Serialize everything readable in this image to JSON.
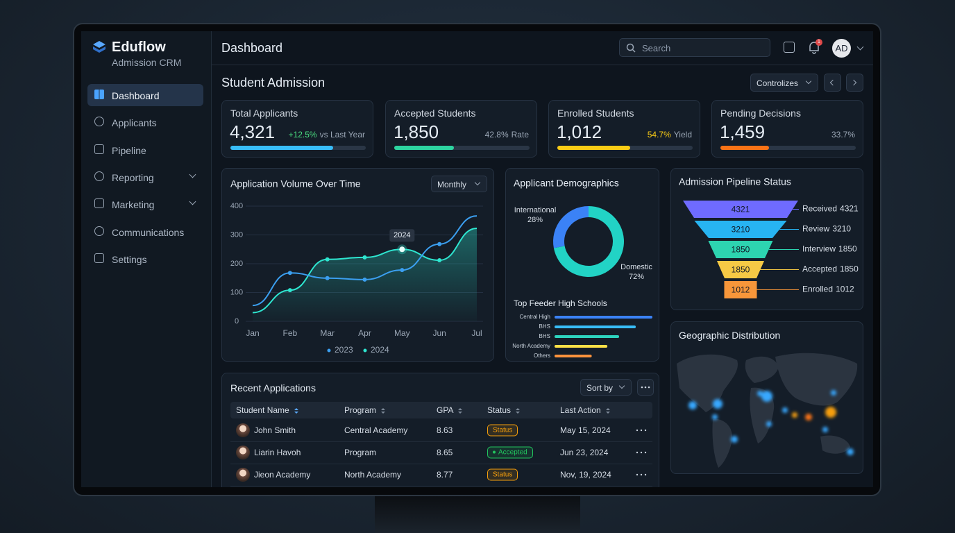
{
  "sidebar": {
    "brand": "Eduflow",
    "subtitle": "Admission CRM",
    "nav": [
      "Dashboard",
      "Applicants",
      "Pipeline",
      "Reporting",
      "Marketing",
      "Communications",
      "Settings"
    ]
  },
  "header": {
    "title": "Dashboard",
    "search_placeholder": "Search",
    "notification_count": 1,
    "avatar": "AD"
  },
  "section": {
    "title": "Student Admission",
    "filter": "Controlizes"
  },
  "kpis": [
    {
      "label": "Total Applicants",
      "value": "4,321",
      "change": "+12.5%",
      "change_label": "vs Last Year",
      "progress": 76,
      "color": "#38bdf8"
    },
    {
      "label": "Accepted Students",
      "value": "1,850",
      "change": "42.8%",
      "change_label": "Rate",
      "progress": 44,
      "color": "#2dd4a0"
    },
    {
      "label": "Enrolled Students",
      "value": "1,012",
      "change": "54.7%",
      "change_label": "Yield",
      "progress": 54,
      "color": "#facc15"
    },
    {
      "label": "Pending Decisions",
      "value": "1,459",
      "change": "33.7%",
      "progress": 36,
      "color": "#f97316"
    }
  ],
  "chart_data": [
    {
      "type": "line",
      "title": "Application Volume Over Time",
      "control": "Monthly",
      "categories": [
        "Jan",
        "Feb",
        "Mar",
        "Apr",
        "May",
        "Jun",
        "Jul"
      ],
      "ylim": [
        0,
        400
      ],
      "yticks": [
        0,
        100,
        200,
        300,
        400
      ],
      "grid": true,
      "annotation": "2024",
      "series": [
        {
          "name": "2023",
          "color": "#3b9ff0",
          "values": [
            55,
            168,
            150,
            145,
            178,
            268,
            366
          ]
        },
        {
          "name": "2024",
          "color": "#2ee6d0",
          "values": [
            30,
            108,
            215,
            222,
            250,
            212,
            323
          ]
        }
      ]
    },
    {
      "type": "donut",
      "title": "Applicant Demographics",
      "categories": [
        "International",
        "Domestic"
      ],
      "values": [
        28,
        72
      ],
      "value_labels": [
        "28%",
        "72%"
      ],
      "colors": [
        "#3b82f6",
        "#22d3c5"
      ]
    },
    {
      "type": "hbar",
      "title": "Top Feeder High Schools",
      "categories": [
        "Central High",
        "BHS",
        "BHS",
        "North Academy",
        "Others"
      ],
      "values": [
        100,
        83,
        66,
        54,
        38
      ],
      "xlim": [
        0,
        100
      ],
      "colors": [
        "#3b82f6",
        "#38bdf8",
        "#2dd4bf",
        "#fde047",
        "#fb923c"
      ]
    },
    {
      "type": "funnel",
      "title": "Admission Pipeline Status",
      "categories": [
        "Received",
        "Review",
        "Interview",
        "Accepted",
        "Enrolled"
      ],
      "values": [
        4321,
        3210,
        1850,
        1850,
        1012
      ],
      "colors": [
        "#6f6bff",
        "#27b4f2",
        "#2dd4b0",
        "#f6c945",
        "#f7963a"
      ]
    }
  ],
  "geo": {
    "title": "Geographic Distribution"
  },
  "table": {
    "title": "Recent Applications",
    "sort": "Sort by",
    "columns": [
      "Student Name",
      "Program",
      "GPA",
      "Status",
      "Last Action"
    ],
    "rows": [
      [
        "John Smith",
        "Central Academy",
        8.63,
        "Status",
        "May 15, 2024"
      ],
      [
        "Liarin Havoh",
        "Program",
        8.65,
        "Accepted",
        "Jun 23, 2024"
      ],
      [
        "Jieon Academy",
        "North Academy",
        8.77,
        "Status",
        "Nov, 19, 2024"
      ]
    ],
    "status_colors": [
      "#f59e0b",
      "#22c55e",
      "#f59e0b"
    ]
  }
}
